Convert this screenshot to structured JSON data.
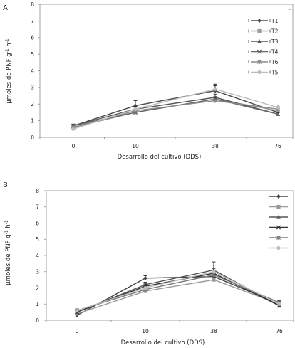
{
  "chart_data": [
    {
      "panel_label": "A",
      "type": "line",
      "categories": [
        "0",
        "10",
        "38",
        "76"
      ],
      "xlabel": "Desarrollo del cultivo (DDS)",
      "ylabel_main": "µmoles de PNF g",
      "ylabel_sup1": "-1",
      "ylabel_mid": " h",
      "ylabel_sup2": "-1",
      "ylim": [
        0,
        8
      ],
      "yticks": [
        "0",
        "1",
        "2",
        "3",
        "4",
        "5",
        "6",
        "7",
        "8"
      ],
      "legend_position": "right",
      "series": [
        {
          "name": "T1",
          "values": [
            0.7,
            1.9,
            2.8,
            1.5
          ],
          "errors": [
            0.1,
            0.3,
            0.4,
            0.2
          ],
          "color": "#4a4a4a",
          "marker": "diamond"
        },
        {
          "name": "T2",
          "values": [
            0.6,
            1.5,
            2.3,
            1.6
          ],
          "errors": [
            0.05,
            0.1,
            0.15,
            0.15
          ],
          "color": "#9a9a9a",
          "marker": "square"
        },
        {
          "name": "T3",
          "values": [
            0.7,
            1.7,
            2.4,
            1.4
          ],
          "errors": [
            0.05,
            0.15,
            0.2,
            0.1
          ],
          "color": "#555555",
          "marker": "triangle"
        },
        {
          "name": "T4",
          "values": [
            0.7,
            1.5,
            2.3,
            1.4
          ],
          "errors": [
            0.05,
            0.1,
            0.1,
            0.1
          ],
          "color": "#666666",
          "marker": "x"
        },
        {
          "name": "T6",
          "values": [
            0.6,
            1.6,
            2.2,
            1.7
          ],
          "errors": [
            0.05,
            0.1,
            0.1,
            0.15
          ],
          "color": "#8a8a8a",
          "marker": "star"
        },
        {
          "name": "T5",
          "values": [
            0.5,
            1.7,
            2.9,
            1.8
          ],
          "errors": [
            0.05,
            0.15,
            0.2,
            0.15
          ],
          "color": "#bcbcbc",
          "marker": "circle"
        }
      ]
    },
    {
      "panel_label": "B",
      "type": "line",
      "categories": [
        "0",
        "10",
        "38",
        "76"
      ],
      "xlabel": "Desarrollo del cultivo (DDS)",
      "ylabel_main": "µmoles de PNF g",
      "ylabel_sup1": "-1",
      "ylabel_mid": " h",
      "ylabel_sup2": "-1",
      "ylim": [
        0,
        8
      ],
      "yticks": [
        "0",
        "1",
        "2",
        "3",
        "4",
        "5",
        "6",
        "7",
        "8"
      ],
      "legend_position": "right",
      "series": [
        {
          "values": [
            0.3,
            2.6,
            2.7,
            1.0
          ],
          "errors": [
            0.05,
            0.15,
            0.2,
            0.1
          ],
          "color": "#444444",
          "marker": "diamond"
        },
        {
          "values": [
            0.4,
            1.8,
            2.5,
            1.0
          ],
          "errors": [
            0.05,
            0.1,
            0.1,
            0.1
          ],
          "color": "#9a9a9a",
          "marker": "square"
        },
        {
          "values": [
            0.5,
            2.2,
            3.1,
            0.9
          ],
          "errors": [
            0.05,
            0.15,
            0.3,
            0.1
          ],
          "color": "#555555",
          "marker": "triangle"
        },
        {
          "values": [
            0.5,
            2.1,
            2.9,
            0.9
          ],
          "errors": [
            0.1,
            0.15,
            0.7,
            0.1
          ],
          "color": "#333333",
          "marker": "x"
        },
        {
          "values": [
            0.6,
            1.9,
            2.8,
            1.1
          ],
          "errors": [
            0.05,
            0.1,
            0.15,
            0.15
          ],
          "color": "#7a7a7a",
          "marker": "star"
        },
        {
          "values": [
            0.6,
            2.0,
            3.0,
            1.0
          ],
          "errors": [
            0.1,
            0.1,
            0.2,
            0.2
          ],
          "color": "#bdbdbd",
          "marker": "circle"
        }
      ]
    }
  ]
}
